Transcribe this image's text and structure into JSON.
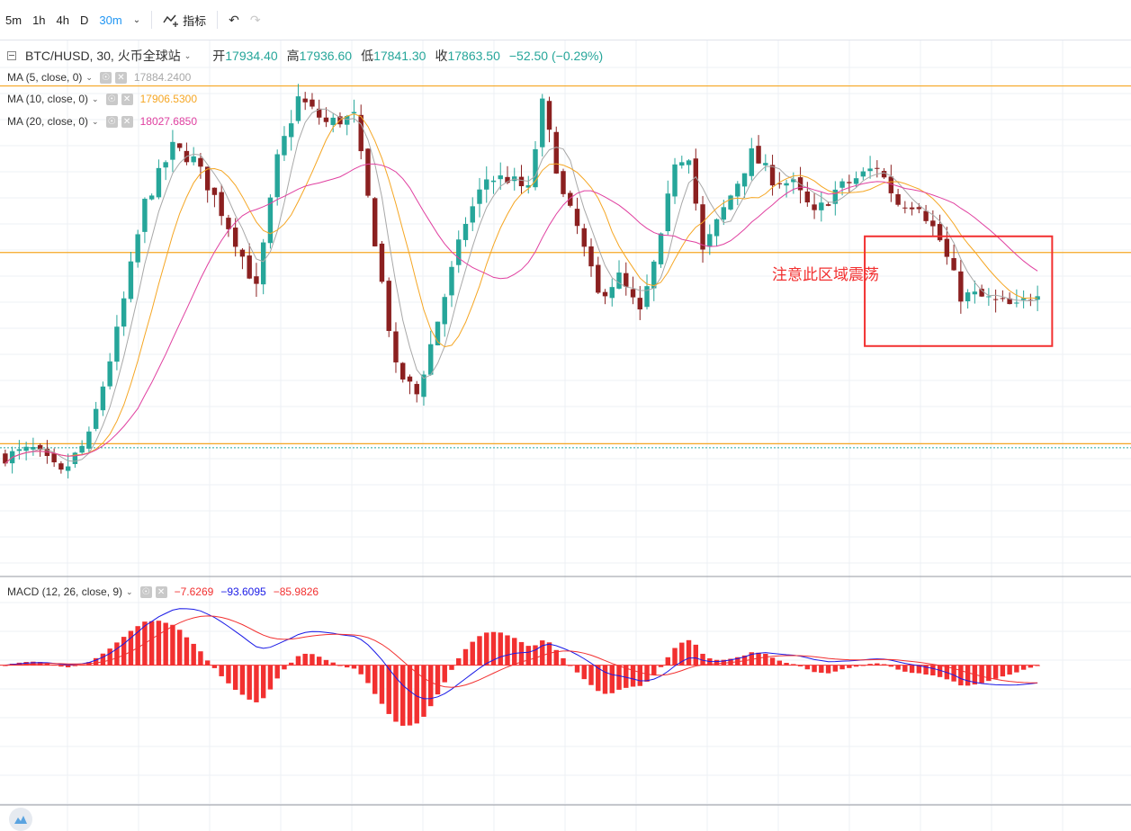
{
  "toolbar": {
    "timeframes": [
      "5m",
      "1h",
      "4h",
      "D",
      "30m"
    ],
    "indicators_label": "指标"
  },
  "legend": {
    "symbol": "BTC/HUSD, 30, 火币全球站",
    "open_label": "开",
    "open": "17934.40",
    "high_label": "高",
    "high": "17936.60",
    "low_label": "低",
    "low": "17841.30",
    "close_label": "收",
    "close": "17863.50",
    "change": "−52.50 (−0.29%)"
  },
  "ma": [
    {
      "label": "MA (5, close, 0)",
      "value": "17884.2400",
      "color": "#a8a8a8"
    },
    {
      "label": "MA (10, close, 0)",
      "value": "17906.5300",
      "color": "#f5a623"
    },
    {
      "label": "MA (20, close, 0)",
      "value": "18027.6850",
      "color": "#e040a0"
    }
  ],
  "macd": {
    "label": "MACD (12, 26, close, 9)",
    "hist": "−7.6269",
    "macd": "−93.6095",
    "signal": "−85.9826",
    "colors": {
      "hist": "#f23030",
      "macd": "#1a1ae6",
      "signal": "#f23030"
    }
  },
  "annotation": "注意此区域震荡",
  "colors": {
    "up": "#26a69a",
    "down": "#8b2020",
    "hline": "#f5a623",
    "box": "#f23030",
    "grid": "#eef0f4"
  },
  "chart_data": {
    "type": "candlestick",
    "series": [
      {
        "name": "BTC/HUSD",
        "close_path": [
          [
            0,
            17850
          ],
          [
            4,
            17860
          ],
          [
            8,
            17820
          ],
          [
            12,
            17880
          ],
          [
            16,
            18050
          ],
          [
            20,
            18260
          ],
          [
            24,
            18350
          ],
          [
            27,
            18330
          ],
          [
            30,
            18270
          ],
          [
            33,
            18200
          ],
          [
            36,
            18120
          ],
          [
            39,
            18330
          ],
          [
            42,
            18430
          ],
          [
            46,
            18390
          ],
          [
            50,
            18400
          ],
          [
            53,
            18200
          ],
          [
            56,
            17990
          ],
          [
            59,
            17950
          ],
          [
            62,
            18070
          ],
          [
            66,
            18230
          ],
          [
            69,
            18300
          ],
          [
            72,
            18300
          ],
          [
            75,
            18280
          ],
          [
            77,
            18420
          ],
          [
            80,
            18270
          ],
          [
            82,
            18220
          ],
          [
            85,
            18110
          ],
          [
            88,
            18140
          ],
          [
            91,
            18080
          ],
          [
            94,
            18200
          ],
          [
            96,
            18330
          ],
          [
            98,
            18340
          ],
          [
            100,
            18180
          ],
          [
            103,
            18250
          ],
          [
            107,
            18340
          ],
          [
            110,
            18300
          ],
          [
            113,
            18290
          ],
          [
            116,
            18240
          ],
          [
            119,
            18280
          ],
          [
            122,
            18300
          ],
          [
            125,
            18320
          ],
          [
            128,
            18260
          ],
          [
            131,
            18260
          ],
          [
            134,
            18200
          ],
          [
            137,
            18110
          ],
          [
            139,
            18110
          ],
          [
            142,
            18100
          ],
          [
            145,
            18090
          ],
          [
            147,
            18110
          ],
          [
            148,
            18120
          ]
        ],
        "last_close": 17863.5
      }
    ],
    "horizontal_levels": [
      18450,
      18180,
      17870
    ],
    "ylim": [
      17700,
      18480
    ],
    "macd_ylim": [
      -300,
      160
    ]
  }
}
